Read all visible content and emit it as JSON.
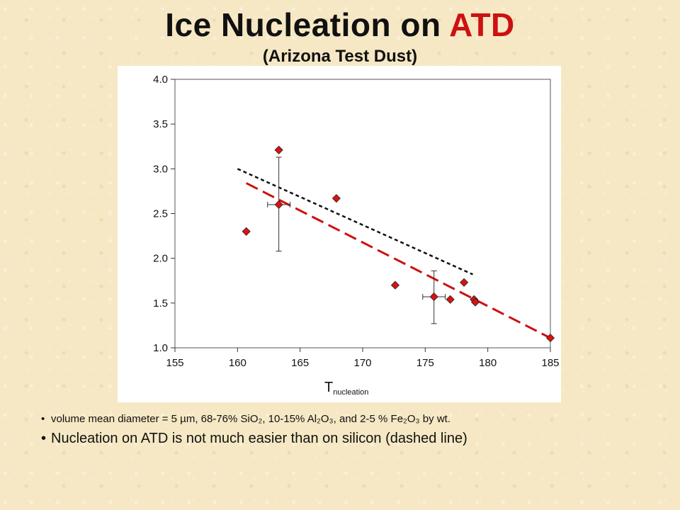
{
  "slide": {
    "title_main": "Ice Nucleation on ",
    "title_accent": "ATD",
    "subtitle": "(Arizona Test Dust)",
    "accent_color": "#cc1111",
    "bullets": {
      "b1_text": "volume mean diameter = 5 µm, 68-76% SiO₂, 10-15% Al₂O₃, and 2-5 % Fe₂O₃ by wt.",
      "b2_text": "Nucleation on ATD is not much easier than on silicon (dashed line)"
    }
  },
  "chart_data": {
    "type": "scatter",
    "title": "",
    "xlabel": "T",
    "xlabel_subscript": "nucleation",
    "ylabel": "",
    "xlim": [
      155,
      185
    ],
    "ylim": [
      1.0,
      4.0
    ],
    "x_ticks": [
      "155",
      "160",
      "165",
      "170",
      "175",
      "180",
      "185"
    ],
    "y_ticks": [
      "1.0",
      "1.5",
      "2.0",
      "2.5",
      "3.0",
      "3.5",
      "4.0"
    ],
    "grid": false,
    "marker_color": "#dd1111",
    "series": [
      {
        "type": "scatter",
        "points": [
          {
            "x": 160.7,
            "y": 2.3
          },
          {
            "x": 163.3,
            "y": 3.21
          },
          {
            "x": 163.3,
            "y": 2.6,
            "yerr": [
              2.08,
              3.13
            ],
            "xerr": [
              162.4,
              164.2
            ]
          },
          {
            "x": 167.9,
            "y": 2.67
          },
          {
            "x": 172.6,
            "y": 1.7
          },
          {
            "x": 175.7,
            "y": 1.57,
            "yerr": [
              1.27,
              1.86
            ],
            "xerr": [
              174.8,
              176.6
            ]
          },
          {
            "x": 177.0,
            "y": 1.54
          },
          {
            "x": 178.1,
            "y": 1.73
          },
          {
            "x": 178.9,
            "y": 1.54
          },
          {
            "x": 179.0,
            "y": 1.51
          },
          {
            "x": 185.0,
            "y": 1.11
          }
        ]
      },
      {
        "type": "line",
        "style": "dashed",
        "color": "#cc1111",
        "x": [
          160.7,
          185.0
        ],
        "y": [
          2.84,
          1.11
        ]
      },
      {
        "type": "line",
        "style": "dotted",
        "color": "#111111",
        "x": [
          160.0,
          178.8
        ],
        "y": [
          3.0,
          1.82
        ]
      }
    ]
  }
}
